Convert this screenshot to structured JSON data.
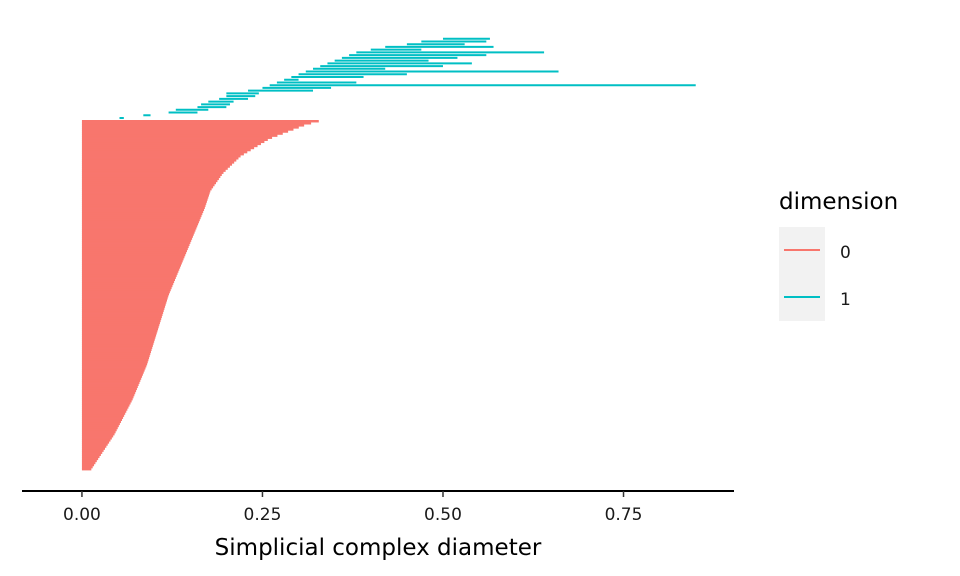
{
  "chart_data": {
    "type": "barcode",
    "title": "",
    "xlabel": "Simplicial complex diameter",
    "ylabel": "",
    "xlim": [
      -0.083,
      0.903
    ],
    "x_ticks": [
      0.0,
      0.25,
      0.5,
      0.75
    ],
    "x_tick_labels": [
      "0.00",
      "0.25",
      "0.50",
      "0.75"
    ],
    "grid": false,
    "legend": {
      "title": "dimension",
      "position": "right",
      "entries": [
        "0",
        "1"
      ]
    },
    "colors": {
      "0": "#F8766D",
      "1": "#00BFC4"
    },
    "series": [
      {
        "dimension": "0",
        "count": 170,
        "intervals_note_death_profile": [
          [
            0.0,
            0.013
          ],
          [
            0.1,
            0.045
          ],
          [
            0.2,
            0.07
          ],
          [
            0.3,
            0.09
          ],
          [
            0.4,
            0.105
          ],
          [
            0.5,
            0.12
          ],
          [
            0.6,
            0.14
          ],
          [
            0.7,
            0.16
          ],
          [
            0.75,
            0.17
          ],
          [
            0.8,
            0.178
          ],
          [
            0.85,
            0.195
          ],
          [
            0.9,
            0.22
          ],
          [
            0.95,
            0.26
          ],
          [
            0.99,
            0.31
          ],
          [
            1.0,
            0.328
          ]
        ],
        "birth": 0.0
      },
      {
        "dimension": "1",
        "intervals": [
          [
            0.052,
            0.058
          ],
          [
            0.085,
            0.095
          ],
          [
            0.12,
            0.16
          ],
          [
            0.13,
            0.175
          ],
          [
            0.16,
            0.2
          ],
          [
            0.165,
            0.205
          ],
          [
            0.175,
            0.21
          ],
          [
            0.19,
            0.23
          ],
          [
            0.2,
            0.24
          ],
          [
            0.2,
            0.245
          ],
          [
            0.23,
            0.32
          ],
          [
            0.25,
            0.345
          ],
          [
            0.26,
            0.85
          ],
          [
            0.27,
            0.38
          ],
          [
            0.28,
            0.3
          ],
          [
            0.29,
            0.39
          ],
          [
            0.3,
            0.45
          ],
          [
            0.31,
            0.66
          ],
          [
            0.32,
            0.42
          ],
          [
            0.33,
            0.5
          ],
          [
            0.34,
            0.54
          ],
          [
            0.35,
            0.48
          ],
          [
            0.36,
            0.52
          ],
          [
            0.37,
            0.56
          ],
          [
            0.38,
            0.64
          ],
          [
            0.4,
            0.47
          ],
          [
            0.42,
            0.57
          ],
          [
            0.45,
            0.53
          ],
          [
            0.47,
            0.56
          ],
          [
            0.5,
            0.565
          ]
        ]
      }
    ]
  }
}
